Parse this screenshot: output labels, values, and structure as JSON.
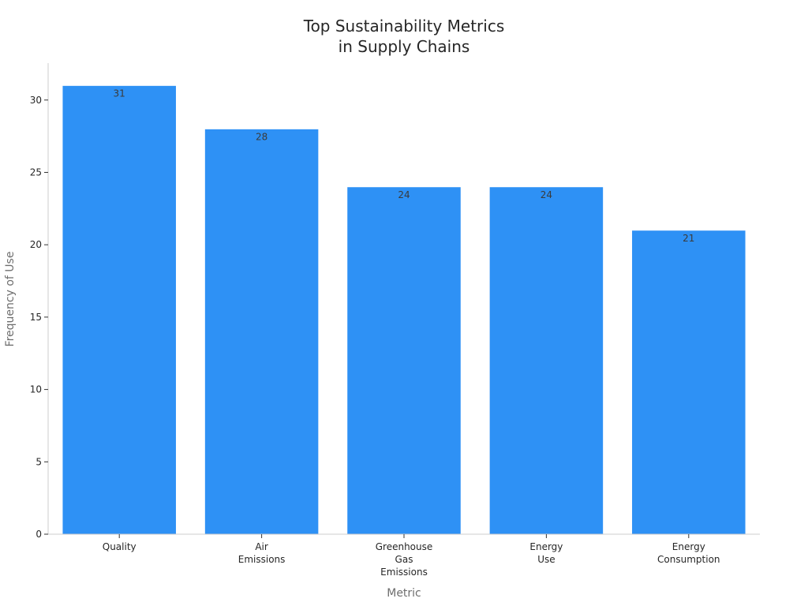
{
  "chart_data": {
    "type": "bar",
    "title": [
      "Top Sustainability Metrics",
      "in Supply Chains"
    ],
    "xlabel": "Metric",
    "ylabel": "Frequency of Use",
    "categories": [
      [
        "Quality"
      ],
      [
        "Air",
        "Emissions"
      ],
      [
        "Greenhouse",
        "Gas",
        "Emissions"
      ],
      [
        "Energy",
        "Use"
      ],
      [
        "Energy",
        "Consumption"
      ]
    ],
    "values": [
      31,
      28,
      24,
      24,
      21
    ],
    "data_labels": [
      "31",
      "28",
      "24",
      "24",
      "21"
    ],
    "ylim": [
      0,
      32.55
    ],
    "yticks": [
      0,
      5,
      10,
      15,
      20,
      25,
      30
    ],
    "ytick_labels": [
      "0",
      "5",
      "10",
      "15",
      "20",
      "25",
      "30"
    ],
    "bar_color": "#2e91f5",
    "grid": false,
    "legend": "none"
  }
}
